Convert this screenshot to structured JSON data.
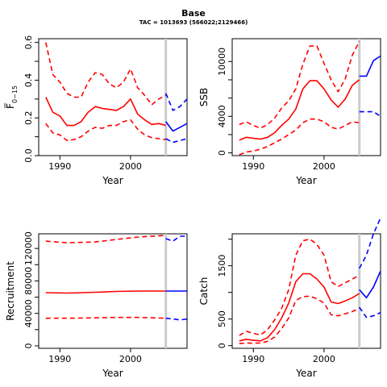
{
  "figure": {
    "title": "Base",
    "subtitle": "TAC = 1013693 (566022;2129466)"
  },
  "chart_data": [
    {
      "type": "line",
      "panel": "fbar",
      "xlabel": "Year",
      "ylabel": "F̅",
      "ylabel_sub": "0−15",
      "xlim": [
        1987,
        2008
      ],
      "ylim": [
        0,
        0.62
      ],
      "xticks": [
        1990,
        2000
      ],
      "yticks": [
        0.0,
        0.2,
        0.4,
        0.6
      ],
      "ytick_labels": [
        "0.0",
        "0.2",
        "0.4",
        "0.6"
      ],
      "yminor": [
        0.1,
        0.3,
        0.5
      ],
      "vline_x": 2005,
      "series": [
        {
          "style": "solid",
          "color": "#ff0000",
          "x": [
            1988,
            1989,
            1990,
            1991,
            1992,
            1993,
            1994,
            1995,
            1996,
            1997,
            1998,
            1999,
            2000,
            2001,
            2002,
            2003,
            2004,
            2005
          ],
          "values": [
            0.31,
            0.23,
            0.21,
            0.16,
            0.16,
            0.18,
            0.23,
            0.26,
            0.25,
            0.245,
            0.24,
            0.26,
            0.3,
            0.22,
            0.19,
            0.165,
            0.17,
            0.16
          ]
        },
        {
          "style": "dashed",
          "color": "#ff0000",
          "x": [
            1988,
            1989,
            1990,
            1991,
            1992,
            1993,
            1994,
            1995,
            1996,
            1997,
            1998,
            1999,
            2000,
            2001,
            2002,
            2003,
            2004,
            2005
          ],
          "values": [
            0.6,
            0.43,
            0.39,
            0.33,
            0.31,
            0.31,
            0.39,
            0.44,
            0.43,
            0.38,
            0.36,
            0.39,
            0.46,
            0.36,
            0.32,
            0.27,
            0.3,
            0.32
          ]
        },
        {
          "style": "dashed",
          "color": "#ff0000",
          "x": [
            1988,
            1989,
            1990,
            1991,
            1992,
            1993,
            1994,
            1995,
            1996,
            1997,
            1998,
            1999,
            2000,
            2001,
            2002,
            2003,
            2004,
            2005
          ],
          "values": [
            0.17,
            0.12,
            0.11,
            0.08,
            0.085,
            0.1,
            0.13,
            0.15,
            0.145,
            0.16,
            0.16,
            0.18,
            0.19,
            0.14,
            0.11,
            0.095,
            0.09,
            0.085
          ]
        },
        {
          "style": "solid",
          "color": "#0000ff",
          "x": [
            2005,
            2006,
            2007,
            2008
          ],
          "values": [
            0.18,
            0.13,
            0.15,
            0.17
          ]
        },
        {
          "style": "dashed",
          "color": "#0000ff",
          "x": [
            2005,
            2006,
            2007,
            2008
          ],
          "values": [
            0.33,
            0.24,
            0.26,
            0.3
          ]
        },
        {
          "style": "dashed",
          "color": "#0000ff",
          "x": [
            2005,
            2006,
            2007,
            2008
          ],
          "values": [
            0.09,
            0.07,
            0.08,
            0.09
          ]
        }
      ]
    },
    {
      "type": "line",
      "panel": "ssb",
      "xlabel": "Year",
      "ylabel": "SSB",
      "xlim": [
        1987,
        2008
      ],
      "ylim": [
        -300,
        12500
      ],
      "xticks": [
        1990,
        2000
      ],
      "yticks": [
        0,
        4000,
        10000
      ],
      "ytick_labels": [
        "0",
        "4000",
        "10000"
      ],
      "yminor": [
        2000,
        6000,
        8000
      ],
      "vline_x": 2005,
      "series": [
        {
          "style": "solid",
          "color": "#ff0000",
          "x": [
            1988,
            1989,
            1990,
            1991,
            1992,
            1993,
            1994,
            1995,
            1996,
            1997,
            1998,
            1999,
            2000,
            2001,
            2002,
            2003,
            2004,
            2005
          ],
          "values": [
            1400,
            1700,
            1600,
            1500,
            1700,
            2200,
            3000,
            3700,
            4800,
            7000,
            7900,
            7900,
            7000,
            5800,
            5000,
            5900,
            7400,
            8000
          ]
        },
        {
          "style": "dashed",
          "color": "#ff0000",
          "x": [
            1988,
            1989,
            1990,
            1991,
            1992,
            1993,
            1994,
            1995,
            1996,
            1997,
            1998,
            1999,
            2000,
            2001,
            2002,
            2003,
            2004,
            2005
          ],
          "values": [
            3100,
            3400,
            3000,
            2700,
            3100,
            3800,
            4900,
            5700,
            7000,
            9700,
            11700,
            11700,
            9800,
            8000,
            6700,
            8100,
            10700,
            12200
          ]
        },
        {
          "style": "dashed",
          "color": "#ff0000",
          "x": [
            1988,
            1989,
            1990,
            1991,
            1992,
            1993,
            1994,
            1995,
            1996,
            1997,
            1998,
            1999,
            2000,
            2001,
            2002,
            2003,
            2004,
            2005
          ],
          "values": [
            -200,
            100,
            200,
            400,
            700,
            1100,
            1500,
            2000,
            2500,
            3300,
            3700,
            3700,
            3400,
            2800,
            2600,
            3000,
            3400,
            3300
          ]
        },
        {
          "style": "solid",
          "color": "#0000ff",
          "x": [
            2005,
            2006,
            2007,
            2008
          ],
          "values": [
            8400,
            8400,
            10100,
            10600
          ]
        },
        {
          "style": "dashed",
          "color": "#0000ff",
          "x": [
            2005,
            2006,
            2007,
            2008
          ],
          "values": [
            4500,
            4500,
            4500,
            4000
          ]
        }
      ]
    },
    {
      "type": "line",
      "panel": "recruitment",
      "xlabel": "Year",
      "ylabel": "Recruitment",
      "xlim": [
        1987,
        2008
      ],
      "ylim": [
        -3000,
        138000
      ],
      "xticks": [
        1990,
        2000
      ],
      "yticks": [
        0,
        40000,
        80000,
        120000
      ],
      "ytick_labels": [
        "0",
        "40000",
        "80000",
        "120000"
      ],
      "yminor": [
        20000,
        60000,
        100000
      ],
      "vline_x": 2005,
      "series": [
        {
          "style": "solid",
          "color": "#ff0000",
          "x": [
            1988,
            1991,
            1995,
            1998,
            2001,
            2005
          ],
          "values": [
            65500,
            65000,
            66000,
            67000,
            67500,
            67500
          ]
        },
        {
          "style": "dashed",
          "color": "#ff0000",
          "x": [
            1988,
            1991,
            1995,
            1998,
            2001,
            2005
          ],
          "values": [
            129000,
            127000,
            128000,
            131000,
            134000,
            136000
          ]
        },
        {
          "style": "dashed",
          "color": "#ff0000",
          "x": [
            1988,
            1991,
            1995,
            1998,
            2001,
            2005
          ],
          "values": [
            34000,
            34000,
            34500,
            35000,
            35000,
            34000
          ]
        },
        {
          "style": "solid",
          "color": "#0000ff",
          "x": [
            2005,
            2006,
            2007,
            2008
          ],
          "values": [
            67500,
            67500,
            67500,
            67500
          ]
        },
        {
          "style": "dashed",
          "color": "#0000ff",
          "x": [
            2005,
            2006,
            2007,
            2008
          ],
          "values": [
            132000,
            129000,
            135000,
            135000
          ]
        },
        {
          "style": "dashed",
          "color": "#0000ff",
          "x": [
            2005,
            2006,
            2007,
            2008
          ],
          "values": [
            34000,
            33000,
            32000,
            33000
          ]
        }
      ]
    },
    {
      "type": "line",
      "panel": "catch",
      "xlabel": "Year",
      "ylabel": "Catch",
      "xlim": [
        1987,
        2008
      ],
      "ylim": [
        -50,
        2100
      ],
      "xticks": [
        1990,
        2000
      ],
      "yticks": [
        0,
        500,
        1500
      ],
      "ytick_labels": [
        "0",
        "500",
        "1500"
      ],
      "yminor": [
        1000,
        2000
      ],
      "vline_x": 2005,
      "series": [
        {
          "style": "solid",
          "color": "#ff0000",
          "x": [
            1988,
            1989,
            1990,
            1991,
            1992,
            1993,
            1994,
            1995,
            1996,
            1997,
            1998,
            1999,
            2000,
            2001,
            2002,
            2003,
            2004,
            2005
          ],
          "values": [
            90,
            120,
            100,
            90,
            150,
            300,
            520,
            800,
            1200,
            1350,
            1350,
            1250,
            1100,
            820,
            790,
            840,
            900,
            980
          ]
        },
        {
          "style": "dashed",
          "color": "#ff0000",
          "x": [
            1988,
            1989,
            1990,
            1991,
            1992,
            1993,
            1994,
            1995,
            1996,
            1997,
            1998,
            1999,
            2000,
            2001,
            2002,
            2003,
            2004,
            2005
          ],
          "values": [
            190,
            270,
            230,
            200,
            300,
            480,
            700,
            1050,
            1700,
            1970,
            2000,
            1900,
            1700,
            1200,
            1110,
            1180,
            1250,
            1320
          ]
        },
        {
          "style": "dashed",
          "color": "#ff0000",
          "x": [
            1988,
            1989,
            1990,
            1991,
            1992,
            1993,
            1994,
            1995,
            1996,
            1997,
            1998,
            1999,
            2000,
            2001,
            2002,
            2003,
            2004,
            2005
          ],
          "values": [
            40,
            50,
            45,
            50,
            80,
            160,
            320,
            520,
            850,
            920,
            930,
            880,
            800,
            580,
            560,
            600,
            640,
            700
          ]
        },
        {
          "style": "solid",
          "color": "#0000ff",
          "x": [
            2005,
            2006,
            2007,
            2008
          ],
          "values": [
            1050,
            900,
            1100,
            1400
          ]
        },
        {
          "style": "dashed",
          "color": "#0000ff",
          "x": [
            2005,
            2006,
            2007,
            2008
          ],
          "values": [
            1450,
            1700,
            2100,
            2400
          ]
        },
        {
          "style": "dashed",
          "color": "#0000ff",
          "x": [
            2005,
            2006,
            2007,
            2008
          ],
          "values": [
            720,
            530,
            560,
            620
          ]
        }
      ]
    }
  ]
}
